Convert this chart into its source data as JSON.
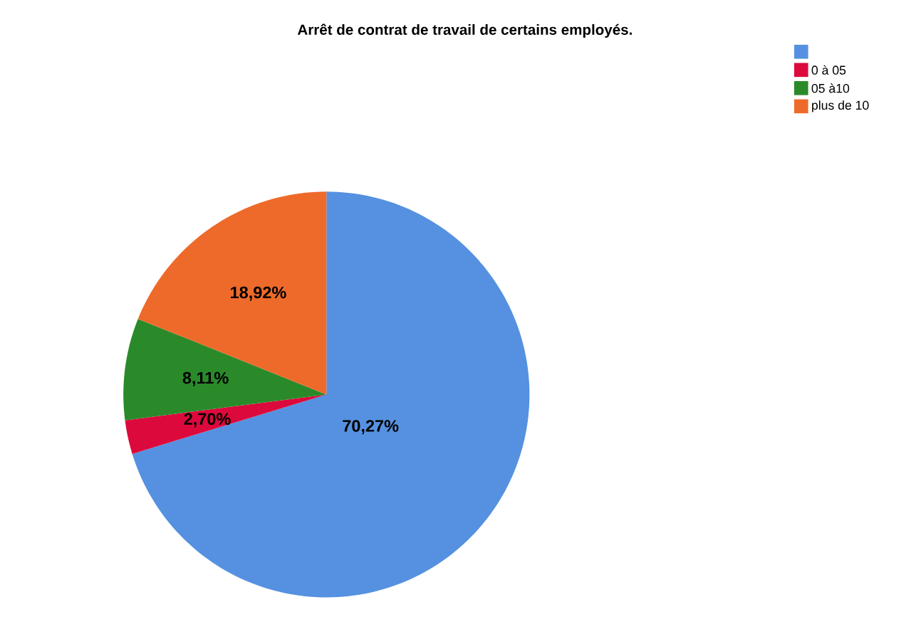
{
  "chart_data": {
    "type": "pie",
    "title": "Arrêt de contrat de travail de certains employés.",
    "categories": [
      null,
      "0 à 05",
      "05 à10",
      "plus de 10"
    ],
    "values": [
      70.27,
      2.7,
      8.11,
      18.92
    ],
    "value_labels": [
      "70,27%",
      "2,70%",
      "8,11%",
      "18,92%"
    ],
    "colors": [
      "#5591e0",
      "#dc0a3c",
      "#2a8a2a",
      "#ee6a2a"
    ],
    "legend": "top right"
  }
}
